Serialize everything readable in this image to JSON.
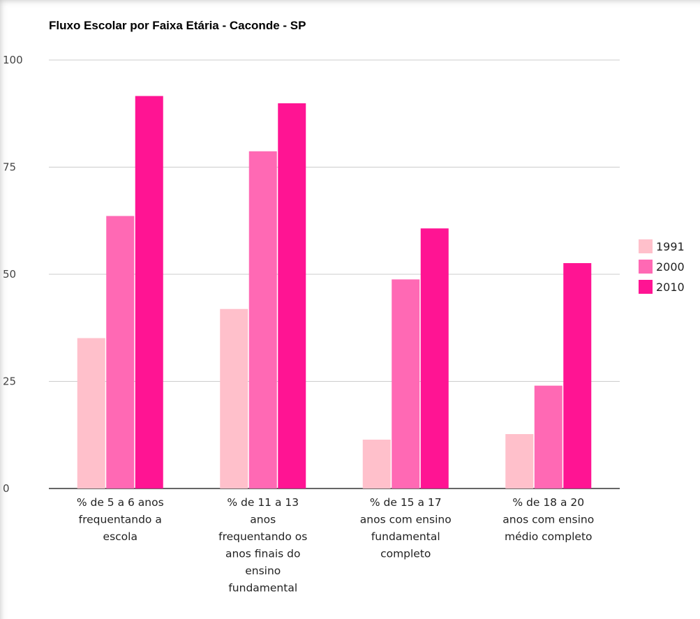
{
  "chart_data": {
    "type": "bar",
    "title": "Fluxo Escolar por Faixa Etária - Caconde - SP",
    "xlabel": "",
    "ylabel": "",
    "ylim": [
      0,
      100
    ],
    "yticks": [
      "0",
      "25",
      "50",
      "75",
      "100"
    ],
    "grid": true,
    "legend_position": "right",
    "categories": [
      "% de 5 a 6 anos frequentando a escola",
      "% de 11 a 13 anos frequentando os anos finais do ensino fundamental",
      "% de 15 a 17 anos com ensino fundamental completo",
      "% de 18 a 20 anos com ensino médio completo"
    ],
    "category_lines": [
      [
        "% de 5 a 6 anos",
        "frequentando a",
        "escola"
      ],
      [
        "% de 11 a 13",
        "anos",
        "frequentando os",
        "anos finais do",
        "ensino",
        "fundamental"
      ],
      [
        "% de 15 a 17",
        "anos com ensino",
        "fundamental",
        "completo"
      ],
      [
        "% de 18 a 20",
        "anos com ensino",
        "médio completo"
      ]
    ],
    "series": [
      {
        "name": "1991",
        "color": "#ffc0cb",
        "values": [
          35.1,
          41.9,
          11.4,
          12.7
        ]
      },
      {
        "name": "2000",
        "color": "#ff69b4",
        "values": [
          63.6,
          78.7,
          48.8,
          24.0
        ]
      },
      {
        "name": "2010",
        "color": "#ff1493",
        "values": [
          91.6,
          89.9,
          60.7,
          52.6
        ]
      }
    ]
  }
}
